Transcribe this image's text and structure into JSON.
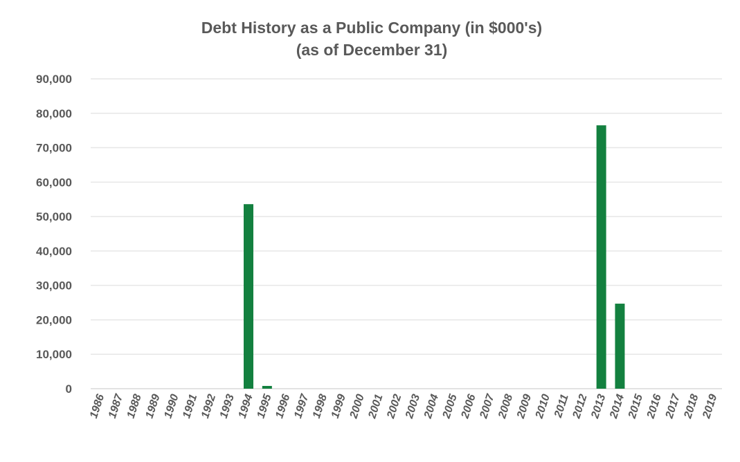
{
  "chart_data": {
    "type": "bar",
    "title": "Debt History as a Public Company (in $000's)",
    "subtitle": "(as of December 31)",
    "xlabel": "",
    "ylabel": "",
    "ylim": [
      0,
      90000
    ],
    "yticks": [
      "0",
      "10,000",
      "20,000",
      "30,000",
      "40,000",
      "50,000",
      "60,000",
      "70,000",
      "80,000",
      "90,000"
    ],
    "grid": true,
    "bar_color": "#13803F",
    "categories": [
      "1986",
      "1987",
      "1988",
      "1989",
      "1990",
      "1991",
      "1992",
      "1993",
      "1994",
      "1995",
      "1996",
      "1997",
      "1998",
      "1999",
      "2000",
      "2001",
      "2002",
      "2003",
      "2004",
      "2005",
      "2006",
      "2007",
      "2008",
      "2009",
      "2010",
      "2011",
      "2012",
      "2013",
      "2014",
      "2015",
      "2016",
      "2017",
      "2018",
      "2019"
    ],
    "values": [
      0,
      0,
      0,
      0,
      0,
      0,
      0,
      0,
      53600,
      800,
      0,
      0,
      0,
      0,
      0,
      0,
      0,
      0,
      0,
      0,
      0,
      0,
      0,
      0,
      0,
      0,
      0,
      76500,
      24700,
      0,
      0,
      0,
      0,
      0
    ]
  }
}
